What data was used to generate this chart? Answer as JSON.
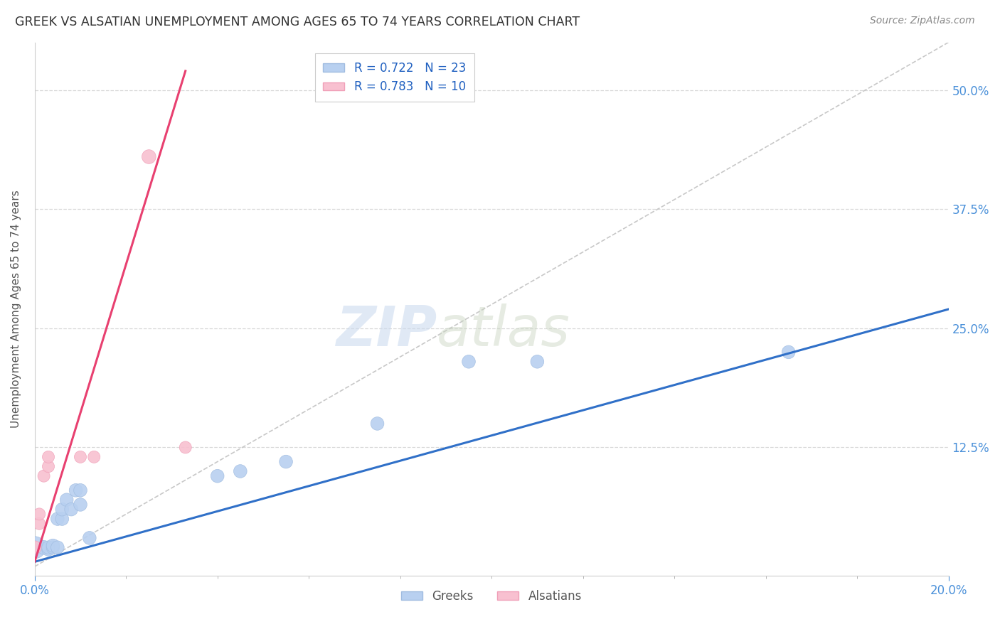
{
  "title": "GREEK VS ALSATIAN UNEMPLOYMENT AMONG AGES 65 TO 74 YEARS CORRELATION CHART",
  "source": "Source: ZipAtlas.com",
  "ylabel_label": "Unemployment Among Ages 65 to 74 years",
  "xlim": [
    0,
    0.2
  ],
  "ylim": [
    -0.01,
    0.55
  ],
  "watermark_zip": "ZIP",
  "watermark_atlas": "atlas",
  "legend_labels": [
    "R = 0.722   N = 23",
    "R = 0.783   N = 10"
  ],
  "legend_bottom_labels": [
    "Greeks",
    "Alsatians"
  ],
  "greek_line_color": "#3070c8",
  "alsatian_line_color": "#e84070",
  "greek_scatter_color": "#b8d0f0",
  "alsatian_scatter_color": "#f8c0d0",
  "greek_scatter_edge": "#a0bce0",
  "alsatian_scatter_edge": "#f0a0b8",
  "greek_points_x": [
    0.0,
    0.002,
    0.003,
    0.003,
    0.004,
    0.004,
    0.005,
    0.005,
    0.006,
    0.006,
    0.007,
    0.008,
    0.009,
    0.01,
    0.01,
    0.012,
    0.04,
    0.045,
    0.055,
    0.075,
    0.095,
    0.11,
    0.165
  ],
  "greek_points_y": [
    0.02,
    0.02,
    0.018,
    0.02,
    0.02,
    0.022,
    0.02,
    0.05,
    0.05,
    0.06,
    0.07,
    0.06,
    0.08,
    0.065,
    0.08,
    0.03,
    0.095,
    0.1,
    0.11,
    0.15,
    0.215,
    0.215,
    0.225
  ],
  "greek_sizes": [
    500,
    200,
    180,
    180,
    180,
    180,
    180,
    180,
    180,
    180,
    180,
    180,
    180,
    180,
    180,
    180,
    180,
    180,
    180,
    180,
    180,
    180,
    180
  ],
  "alsatian_points_x": [
    0.0,
    0.001,
    0.001,
    0.002,
    0.003,
    0.003,
    0.01,
    0.013,
    0.025,
    0.033
  ],
  "alsatian_points_y": [
    0.02,
    0.045,
    0.055,
    0.095,
    0.105,
    0.115,
    0.115,
    0.115,
    0.43,
    0.125
  ],
  "alsatian_sizes": [
    180,
    150,
    150,
    150,
    150,
    150,
    150,
    150,
    200,
    150
  ],
  "greek_line_x0": 0.0,
  "greek_line_y0": 0.005,
  "greek_line_x1": 0.2,
  "greek_line_y1": 0.27,
  "alsatian_line_x0": 0.0,
  "alsatian_line_y0": 0.005,
  "alsatian_line_x1": 0.033,
  "alsatian_line_y1": 0.52,
  "dash_line_x0": 0.0,
  "dash_line_y0": 0.0,
  "dash_line_x1": 0.2,
  "dash_line_y1": 0.55,
  "trendline_dashed_color": "#c8c8c8",
  "background_color": "#ffffff",
  "grid_color": "#d8d8d8",
  "ytick_values": [
    0.0,
    0.125,
    0.25,
    0.375,
    0.5
  ],
  "ytick_labels": [
    "",
    "12.5%",
    "25.0%",
    "37.5%",
    "50.0%"
  ],
  "xtick_values": [
    0.0,
    0.2
  ],
  "xtick_labels": [
    "0.0%",
    "20.0%"
  ]
}
